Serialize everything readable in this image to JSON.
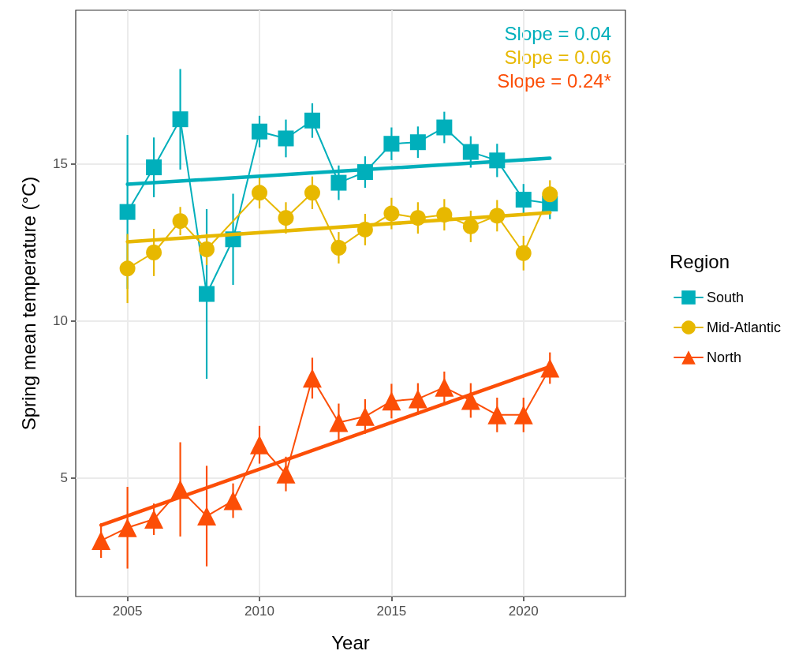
{
  "chart_data": {
    "type": "line",
    "xlabel": "Year",
    "ylabel": "Spring mean temperature (°C)",
    "legend_title": "Region",
    "legend": "right",
    "grid": true,
    "x": [
      2004,
      2005,
      2006,
      2007,
      2008,
      2009,
      2010,
      2011,
      2012,
      2013,
      2014,
      2015,
      2016,
      2017,
      2018,
      2019,
      2020,
      2021
    ],
    "xlim": [
      2003.04,
      2023.86
    ],
    "xticks": [
      2005,
      2010,
      2015,
      2020
    ],
    "ylim": [
      1.22,
      19.88
    ],
    "yticks": [
      5,
      10,
      15
    ],
    "annotations": [
      "Slope = 0.04",
      "Slope = 0.06",
      "Slope = 0.24*"
    ],
    "series": [
      {
        "name": "South",
        "color": "#00afbb",
        "marker": "square",
        "values": [
          null,
          13.46,
          14.88,
          16.41,
          10.85,
          12.59,
          16.02,
          15.8,
          16.37,
          14.39,
          14.73,
          15.63,
          15.68,
          16.15,
          15.37,
          15.1,
          13.85,
          13.73
        ],
        "errors": [
          null,
          2.45,
          0.95,
          1.6,
          2.7,
          1.45,
          0.5,
          0.6,
          0.55,
          0.55,
          0.5,
          0.52,
          0.5,
          0.5,
          0.5,
          0.53,
          0.5,
          0.5
        ]
      },
      {
        "name": "Mid-Atlantic",
        "color": "#e7b800",
        "marker": "circle",
        "values": [
          null,
          11.66,
          12.17,
          13.17,
          12.27,
          null,
          14.07,
          13.27,
          14.07,
          12.32,
          12.9,
          13.41,
          13.27,
          13.37,
          13.0,
          13.34,
          12.15,
          14.02
        ],
        "errors": [
          null,
          1.1,
          0.75,
          0.45,
          0.5,
          null,
          0.5,
          0.5,
          0.52,
          0.5,
          0.5,
          0.5,
          0.5,
          0.5,
          0.5,
          0.5,
          0.55,
          0.45
        ]
      },
      {
        "name": "North",
        "color": "#fc4e07",
        "marker": "triangle",
        "values": [
          3.0,
          3.41,
          3.68,
          4.63,
          3.78,
          4.27,
          6.05,
          5.12,
          8.17,
          6.76,
          6.95,
          7.44,
          7.51,
          7.88,
          7.46,
          7.0,
          7.0,
          8.49
        ],
        "errors": [
          0.55,
          1.3,
          0.5,
          1.5,
          1.6,
          0.55,
          0.6,
          0.55,
          0.65,
          0.6,
          0.55,
          0.55,
          0.5,
          0.5,
          0.55,
          0.55,
          0.55,
          0.5
        ]
      },
      {
        "type": "line",
        "color": "#00afbb",
        "marker": "none",
        "x": [
          2005,
          2021
        ],
        "values": [
          14.34,
          15.17
        ]
      },
      {
        "type": "line",
        "color": "#e7b800",
        "marker": "none",
        "x": [
          2005,
          2021
        ],
        "values": [
          12.51,
          13.44
        ]
      },
      {
        "type": "line",
        "color": "#fc4e07",
        "marker": "none",
        "x": [
          2004,
          2021
        ],
        "values": [
          3.49,
          8.54
        ]
      }
    ]
  }
}
